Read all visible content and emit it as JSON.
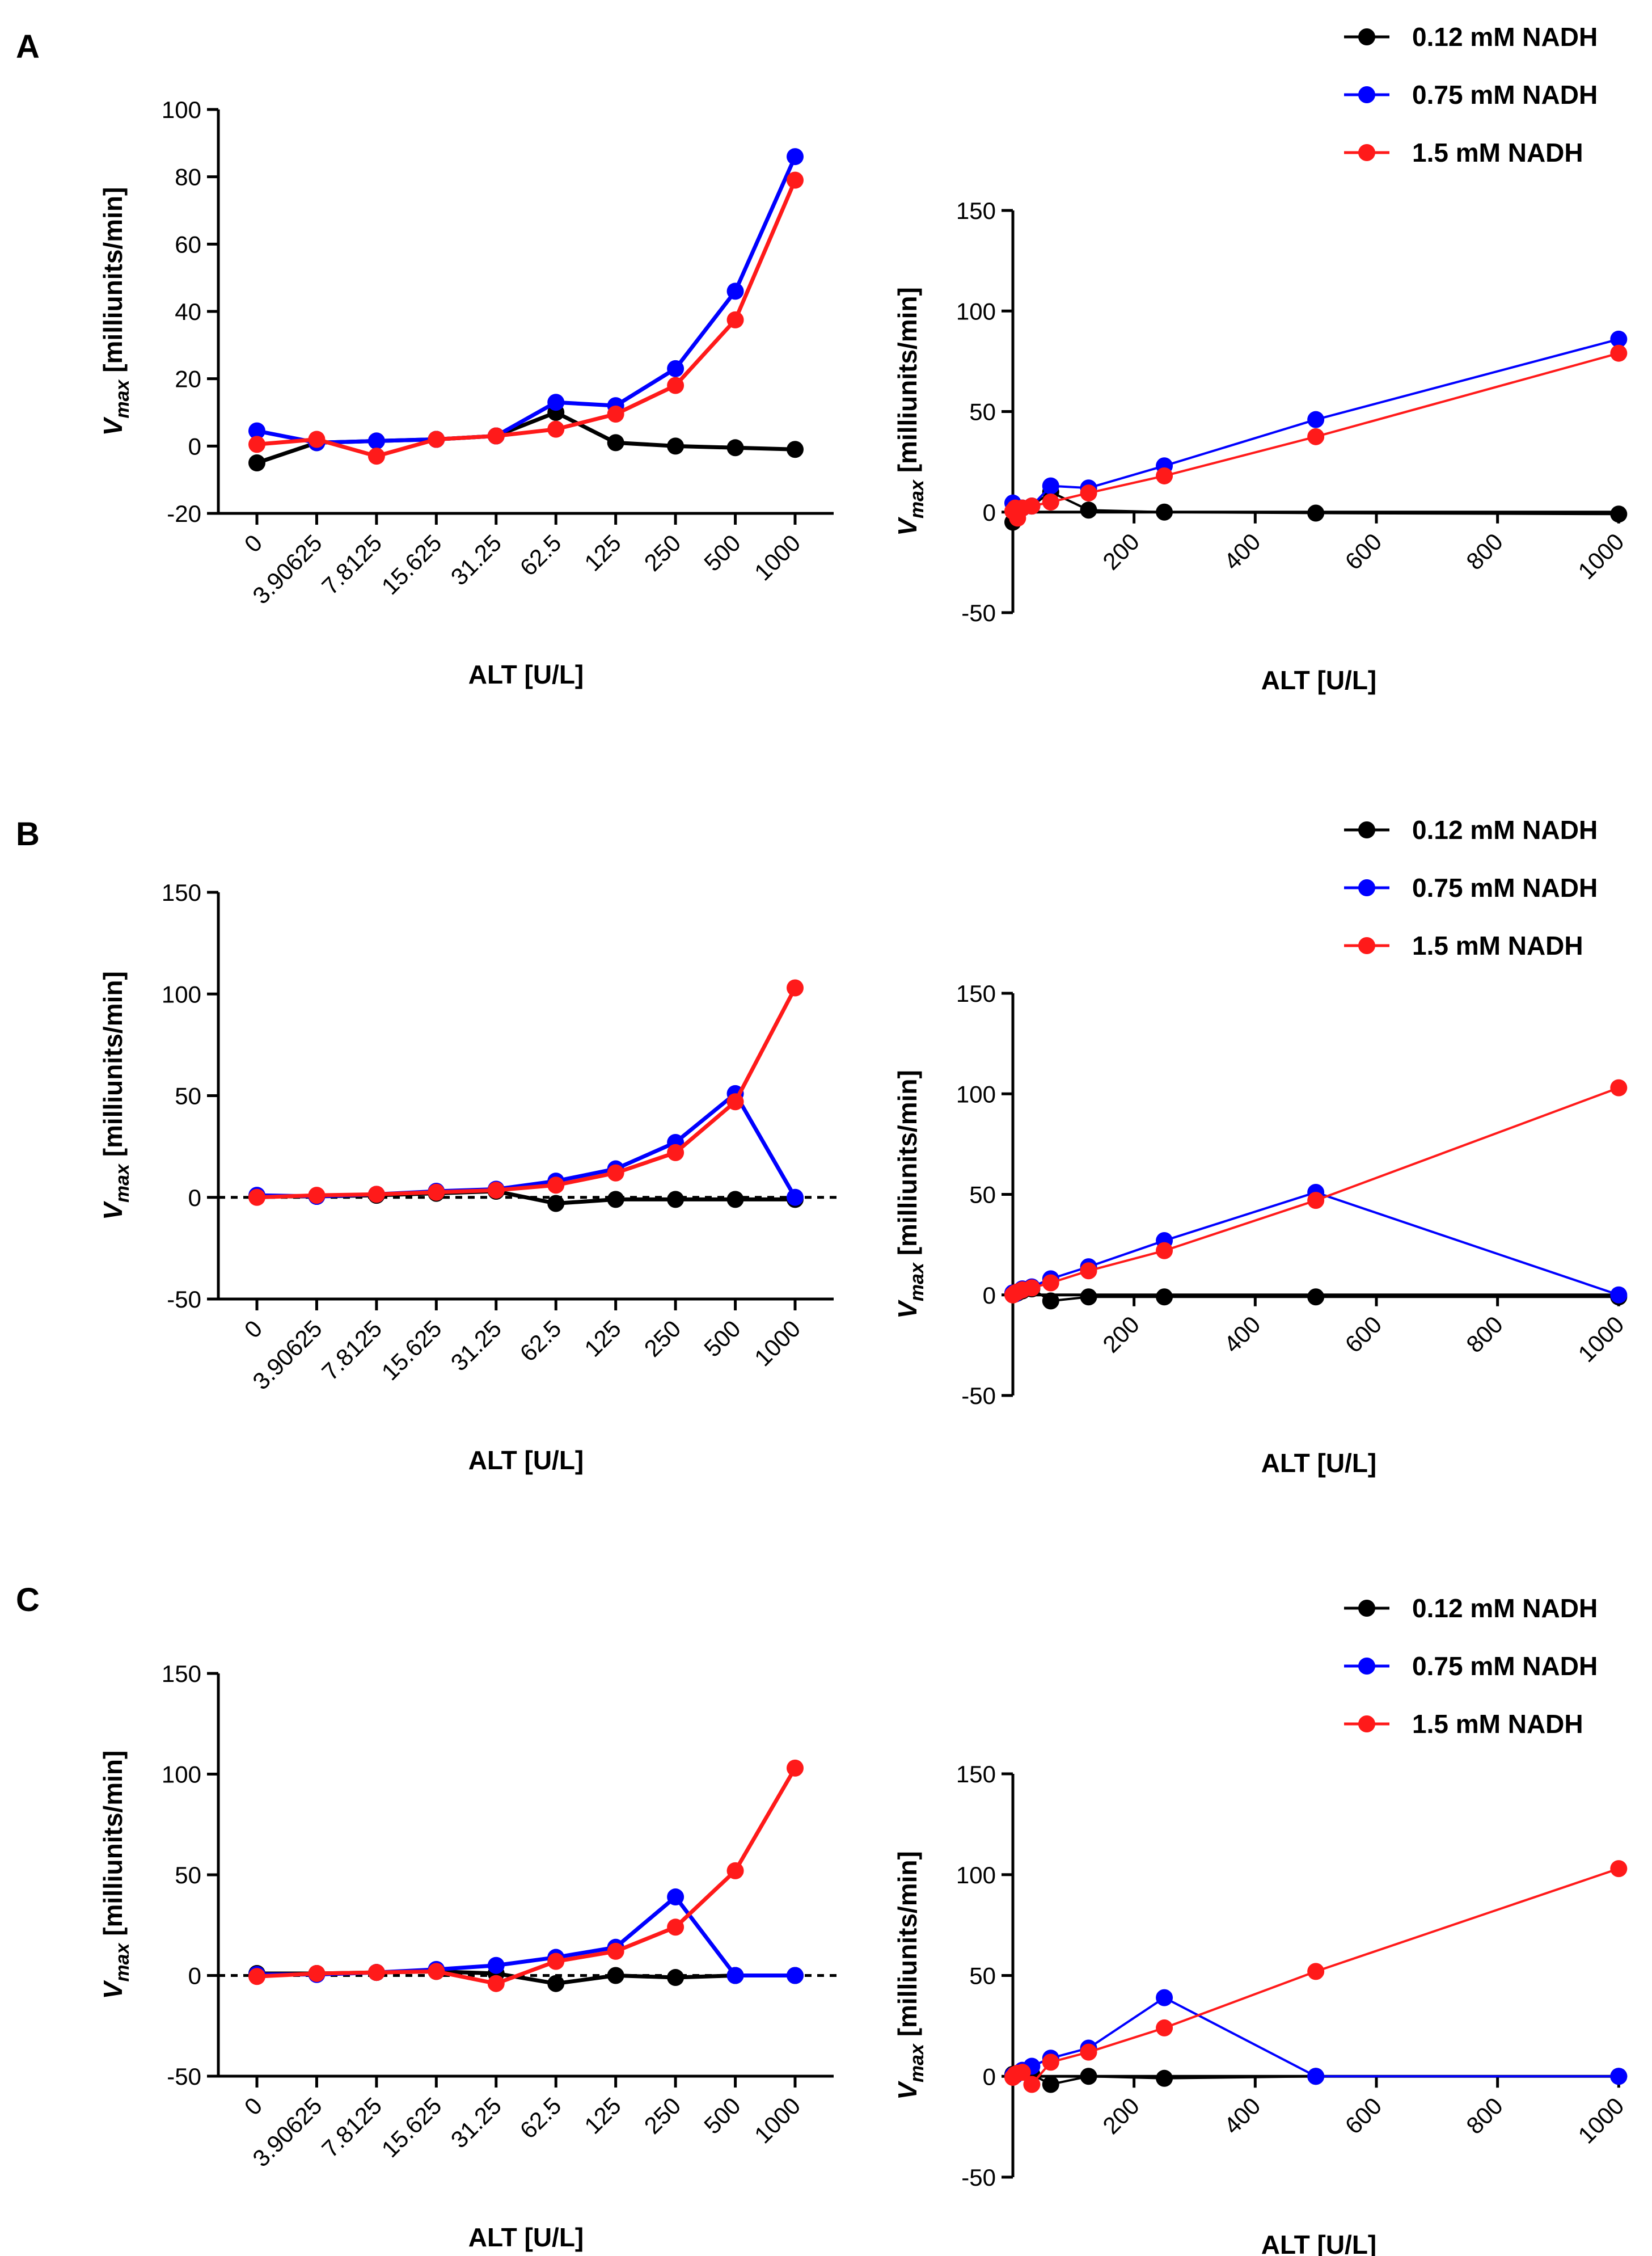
{
  "colors": {
    "black": "#000000",
    "blue": "#0000ff",
    "red": "#ff1a1a"
  },
  "chart_data": [
    {
      "id": "A-left",
      "panel": "A",
      "type": "line",
      "scale": "categorical",
      "xlabel": "ALT [U/L]",
      "ylabel_main": "V",
      "ylabel_sub": "max",
      "ylabel_rest": " [milliunits/min]",
      "categories": [
        "0",
        "3.90625",
        "7.8125",
        "15.625",
        "31.25",
        "62.5",
        "125",
        "250",
        "500",
        "1000"
      ],
      "ylim": [
        -20,
        100
      ],
      "yticks": [
        -20,
        0,
        20,
        40,
        60,
        80,
        100
      ],
      "zero_line": false,
      "series": [
        {
          "name": "0.12 mM NADH",
          "color": "#000000",
          "values": [
            -5,
            1,
            1.5,
            2,
            3,
            10,
            1,
            0,
            -0.5,
            -1
          ]
        },
        {
          "name": "0.75 mM NADH",
          "color": "#0000ff",
          "values": [
            4.5,
            1,
            1.5,
            2,
            3,
            13,
            12,
            23,
            46,
            86
          ]
        },
        {
          "name": "1.5 mM NADH",
          "color": "#ff1a1a",
          "values": [
            0.5,
            2,
            -3,
            2,
            3,
            5,
            9.5,
            18,
            37.5,
            79
          ]
        }
      ]
    },
    {
      "id": "A-right",
      "panel": "A",
      "type": "line",
      "scale": "linear",
      "xlabel": "ALT [U/L]",
      "ylabel_main": "V",
      "ylabel_sub": "max",
      "ylabel_rest": " [milliunits/min]",
      "x": [
        0,
        3.90625,
        7.8125,
        15.625,
        31.25,
        62.5,
        125,
        250,
        500,
        1000
      ],
      "xlim": [
        0,
        1010
      ],
      "xticks": [
        200,
        400,
        600,
        800,
        1000
      ],
      "ylim": [
        -50,
        150
      ],
      "yticks": [
        -50,
        0,
        50,
        100,
        150
      ],
      "zero_line": false,
      "series": [
        {
          "name": "0.12 mM NADH",
          "color": "#000000",
          "values": [
            -5,
            1,
            1.5,
            2,
            3,
            10,
            1,
            0,
            -0.5,
            -1
          ]
        },
        {
          "name": "0.75 mM NADH",
          "color": "#0000ff",
          "values": [
            4.5,
            1,
            1.5,
            2,
            3,
            13,
            12,
            23,
            46,
            86
          ]
        },
        {
          "name": "1.5 mM NADH",
          "color": "#ff1a1a",
          "values": [
            0.5,
            2,
            -3,
            2,
            3,
            5,
            9.5,
            18,
            37.5,
            79
          ]
        }
      ]
    },
    {
      "id": "B-left",
      "panel": "B",
      "type": "line",
      "scale": "categorical",
      "xlabel": "ALT [U/L]",
      "ylabel_main": "V",
      "ylabel_sub": "max",
      "ylabel_rest": " [milliunits/min]",
      "categories": [
        "0",
        "3.90625",
        "7.8125",
        "15.625",
        "31.25",
        "62.5",
        "125",
        "250",
        "500",
        "1000"
      ],
      "ylim": [
        -50,
        150
      ],
      "yticks": [
        -50,
        0,
        50,
        100,
        150
      ],
      "zero_line": true,
      "series": [
        {
          "name": "0.12 mM NADH",
          "color": "#000000",
          "values": [
            0.5,
            0.5,
            1,
            2,
            3,
            -3,
            -1,
            -1,
            -1,
            -1
          ]
        },
        {
          "name": "0.75 mM NADH",
          "color": "#0000ff",
          "values": [
            1,
            0.5,
            1.5,
            3,
            4,
            8,
            14,
            27,
            51,
            0
          ]
        },
        {
          "name": "1.5 mM NADH",
          "color": "#ff1a1a",
          "values": [
            0,
            1,
            1.5,
            2.5,
            3.5,
            6,
            12,
            22,
            47,
            103
          ]
        }
      ]
    },
    {
      "id": "B-right",
      "panel": "B",
      "type": "line",
      "scale": "linear",
      "xlabel": "ALT [U/L]",
      "ylabel_main": "V",
      "ylabel_sub": "max",
      "ylabel_rest": " [milliunits/min]",
      "x": [
        0,
        3.90625,
        7.8125,
        15.625,
        31.25,
        62.5,
        125,
        250,
        500,
        1000
      ],
      "xlim": [
        0,
        1010
      ],
      "xticks": [
        200,
        400,
        600,
        800,
        1000
      ],
      "ylim": [
        -50,
        150
      ],
      "yticks": [
        -50,
        0,
        50,
        100,
        150
      ],
      "zero_line": false,
      "series": [
        {
          "name": "0.12 mM NADH",
          "color": "#000000",
          "values": [
            0.5,
            0.5,
            1,
            2,
            3,
            -3,
            -1,
            -1,
            -1,
            -1
          ]
        },
        {
          "name": "0.75 mM NADH",
          "color": "#0000ff",
          "values": [
            1,
            0.5,
            1.5,
            3,
            4,
            8,
            14,
            27,
            51,
            0
          ]
        },
        {
          "name": "1.5 mM NADH",
          "color": "#ff1a1a",
          "values": [
            0,
            1,
            1.5,
            2.5,
            3.5,
            6,
            12,
            22,
            47,
            103
          ]
        }
      ]
    },
    {
      "id": "C-left",
      "panel": "C",
      "type": "line",
      "scale": "categorical",
      "xlabel": "ALT [U/L]",
      "ylabel_main": "V",
      "ylabel_sub": "max",
      "ylabel_rest": " [milliunits/min]",
      "categories": [
        "0",
        "3.90625",
        "7.8125",
        "15.625",
        "31.25",
        "62.5",
        "125",
        "250",
        "500",
        "1000"
      ],
      "ylim": [
        -50,
        150
      ],
      "yticks": [
        -50,
        0,
        50,
        100,
        150
      ],
      "zero_line": true,
      "series": [
        {
          "name": "0.12 mM NADH",
          "color": "#000000",
          "values": [
            1,
            1,
            1.5,
            2,
            1,
            -4,
            0,
            -1,
            0,
            0
          ]
        },
        {
          "name": "0.75 mM NADH",
          "color": "#0000ff",
          "values": [
            0.5,
            0.5,
            1.5,
            3,
            5,
            9,
            14,
            39,
            0,
            0
          ]
        },
        {
          "name": "1.5 mM NADH",
          "color": "#ff1a1a",
          "values": [
            -0.5,
            1,
            1.5,
            2,
            -4,
            7,
            12,
            24,
            52,
            103
          ]
        }
      ]
    },
    {
      "id": "C-right",
      "panel": "C",
      "type": "line",
      "scale": "linear",
      "xlabel": "ALT [U/L]",
      "ylabel_main": "V",
      "ylabel_sub": "max",
      "ylabel_rest": " [milliunits/min]",
      "x": [
        0,
        3.90625,
        7.8125,
        15.625,
        31.25,
        62.5,
        125,
        250,
        500,
        1000
      ],
      "xlim": [
        0,
        1010
      ],
      "xticks": [
        200,
        400,
        600,
        800,
        1000
      ],
      "ylim": [
        -50,
        150
      ],
      "yticks": [
        -50,
        0,
        50,
        100,
        150
      ],
      "zero_line": false,
      "series": [
        {
          "name": "0.12 mM NADH",
          "color": "#000000",
          "values": [
            1,
            1,
            1.5,
            2,
            1,
            -4,
            0,
            -1,
            0,
            0
          ]
        },
        {
          "name": "0.75 mM NADH",
          "color": "#0000ff",
          "values": [
            0.5,
            0.5,
            1.5,
            3,
            5,
            9,
            14,
            39,
            0,
            0
          ]
        },
        {
          "name": "1.5 mM NADH",
          "color": "#ff1a1a",
          "values": [
            -0.5,
            1,
            1.5,
            2,
            -4,
            7,
            12,
            24,
            52,
            103
          ]
        }
      ]
    }
  ],
  "panels": [
    {
      "label": "A",
      "legend": [
        "0.12 mM NADH",
        "0.75 mM NADH",
        "1.5 mM NADH"
      ]
    },
    {
      "label": "B",
      "legend": [
        "0.12 mM NADH",
        "0.75 mM NADH",
        "1.5 mM NADH"
      ]
    },
    {
      "label": "C",
      "legend": [
        "0.12 mM NADH",
        "0.75 mM NADH",
        "1.5 mM NADH"
      ]
    }
  ]
}
